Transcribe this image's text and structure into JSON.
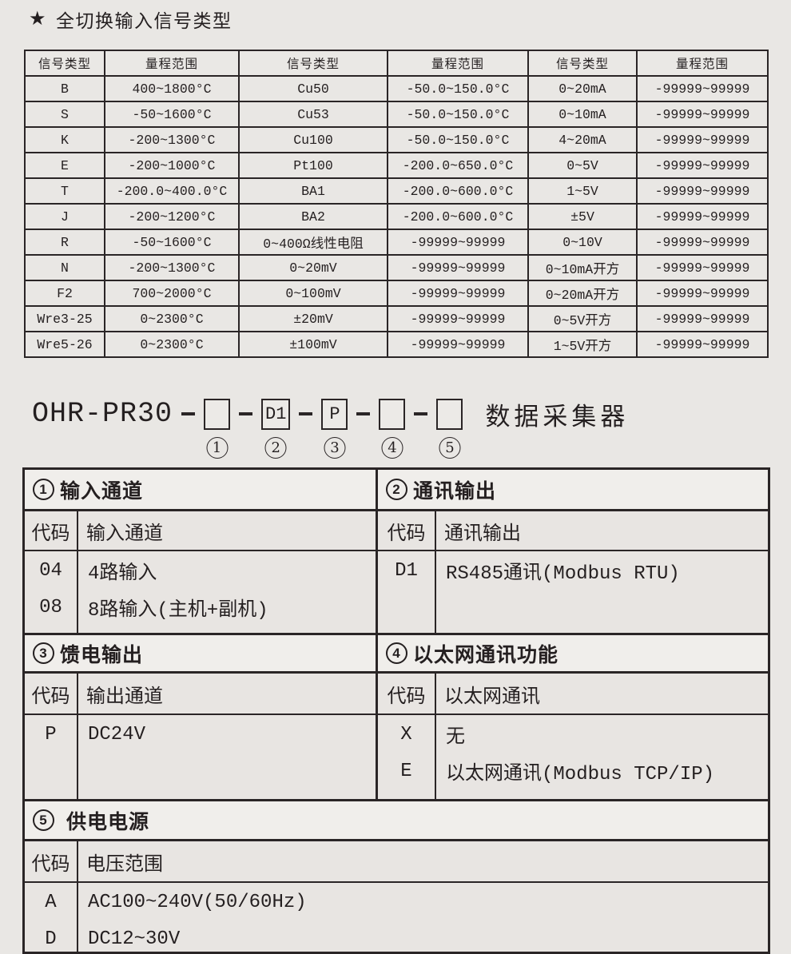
{
  "title": {
    "star": "★",
    "text": "全切换输入信号类型"
  },
  "signal_table": {
    "headers": [
      "信号类型",
      "量程范围",
      "信号类型",
      "量程范围",
      "信号类型",
      "量程范围"
    ],
    "rows": [
      [
        "B",
        "400~1800°C",
        "Cu50",
        "-50.0~150.0°C",
        "0~20mA",
        "-99999~99999"
      ],
      [
        "S",
        "-50~1600°C",
        "Cu53",
        "-50.0~150.0°C",
        "0~10mA",
        "-99999~99999"
      ],
      [
        "K",
        "-200~1300°C",
        "Cu100",
        "-50.0~150.0°C",
        "4~20mA",
        "-99999~99999"
      ],
      [
        "E",
        "-200~1000°C",
        "Pt100",
        "-200.0~650.0°C",
        "0~5V",
        "-99999~99999"
      ],
      [
        "T",
        "-200.0~400.0°C",
        "BA1",
        "-200.0~600.0°C",
        "1~5V",
        "-99999~99999"
      ],
      [
        "J",
        "-200~1200°C",
        "BA2",
        "-200.0~600.0°C",
        "±5V",
        "-99999~99999"
      ],
      [
        "R",
        "-50~1600°C",
        "0~400Ω线性电阻",
        "-99999~99999",
        "0~10V",
        "-99999~99999"
      ],
      [
        "N",
        "-200~1300°C",
        "0~20mV",
        "-99999~99999",
        "0~10mA开方",
        "-99999~99999"
      ],
      [
        "F2",
        "700~2000°C",
        "0~100mV",
        "-99999~99999",
        "0~20mA开方",
        "-99999~99999"
      ],
      [
        "Wre3-25",
        "0~2300°C",
        "±20mV",
        "-99999~99999",
        "0~5V开方",
        "-99999~99999"
      ],
      [
        "Wre5-26",
        "0~2300°C",
        "±100mV",
        "-99999~99999",
        "1~5V开方",
        "-99999~99999"
      ]
    ]
  },
  "order_code": {
    "prefix": "OHR-PR30",
    "suffix": "数据采集器",
    "slots": [
      {
        "num": "1",
        "value": ""
      },
      {
        "num": "2",
        "value": "D1"
      },
      {
        "num": "3",
        "value": "P"
      },
      {
        "num": "4",
        "value": ""
      },
      {
        "num": "5",
        "value": ""
      }
    ]
  },
  "sections": {
    "s1": {
      "num": "1",
      "title": "输入通道",
      "code_header": "代码",
      "desc_header": "输入通道",
      "entries": [
        {
          "code": "04",
          "desc": "4路输入"
        },
        {
          "code": "08",
          "desc": "8路输入(主机+副机)"
        }
      ]
    },
    "s2": {
      "num": "2",
      "title": "通讯输出",
      "code_header": "代码",
      "desc_header": "通讯输出",
      "entries": [
        {
          "code": "D1",
          "desc": "RS485通讯(Modbus RTU)"
        }
      ]
    },
    "s3": {
      "num": "3",
      "title": "馈电输出",
      "code_header": "代码",
      "desc_header": "输出通道",
      "entries": [
        {
          "code": "P",
          "desc": "DC24V"
        }
      ]
    },
    "s4": {
      "num": "4",
      "title": "以太网通讯功能",
      "code_header": "代码",
      "desc_header": "以太网通讯",
      "entries": [
        {
          "code": "X",
          "desc": "无"
        },
        {
          "code": "E",
          "desc": "以太网通讯(Modbus TCP/IP)"
        }
      ]
    },
    "s5": {
      "num": "5",
      "title": "供电电源",
      "code_header": "代码",
      "desc_header": "电压范围",
      "entries": [
        {
          "code": "A",
          "desc": "AC100~240V(50/60Hz)"
        },
        {
          "code": "D",
          "desc": "DC12~30V"
        }
      ]
    }
  }
}
